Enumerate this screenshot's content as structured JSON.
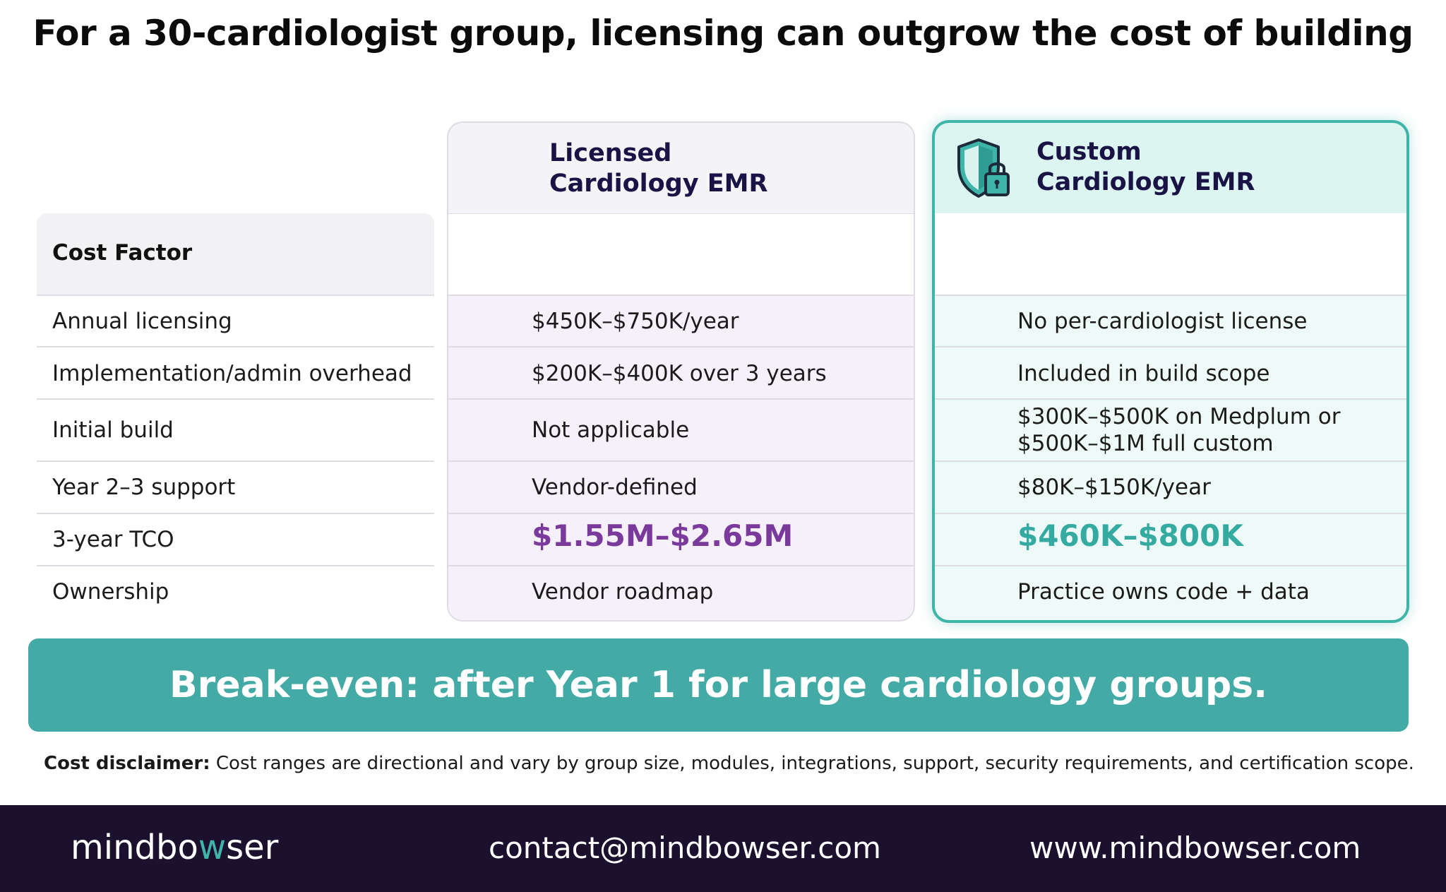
{
  "title": "For a 30-cardiologist group, licensing can outgrow the cost of building",
  "columns": {
    "cost_factor": "Cost Factor",
    "licensed": {
      "line1": "Licensed",
      "line2": "Cardiology EMR"
    },
    "custom": {
      "line1": "Custom",
      "line2": "Cardiology EMR",
      "icon": "shield-lock-icon"
    }
  },
  "rows": [
    {
      "factor": "Annual licensing",
      "licensed": "$450K–$750K/year",
      "custom": "No per-cardiologist license"
    },
    {
      "factor": "Implementation/admin overhead",
      "licensed": "$200K–$400K over 3 years",
      "custom": "Included in build scope"
    },
    {
      "factor": "Initial build",
      "licensed": "Not applicable",
      "custom_line1": "$300K–$500K on Medplum or",
      "custom_line2": "$500K–$1M full custom"
    },
    {
      "factor": "Year 2–3 support",
      "licensed": "Vendor-defined",
      "custom": "$80K–$150K/year"
    },
    {
      "factor": "3-year TCO",
      "licensed": "$1.55M–$2.65M",
      "custom": "$460K–$800K"
    },
    {
      "factor": "Ownership",
      "licensed": "Vendor roadmap",
      "custom": "Practice owns code + data"
    }
  ],
  "banner": "Break-even: after Year 1 for large cardiology groups.",
  "disclaimer": {
    "label": "Cost disclaimer:",
    "text": " Cost ranges are directional and vary by group size, modules, integrations, support, security requirements, and certification scope."
  },
  "footer": {
    "logo_part1": "mindbo",
    "logo_w": "w",
    "logo_part2": "ser",
    "email": "contact@mindbowser.com",
    "website": "www.mindbowser.com"
  },
  "colors": {
    "accent_teal": "#44aaa5",
    "tco_licensed": "#7a3a9b",
    "tco_custom": "#34aaa0",
    "footer_bg": "#1b112e"
  }
}
